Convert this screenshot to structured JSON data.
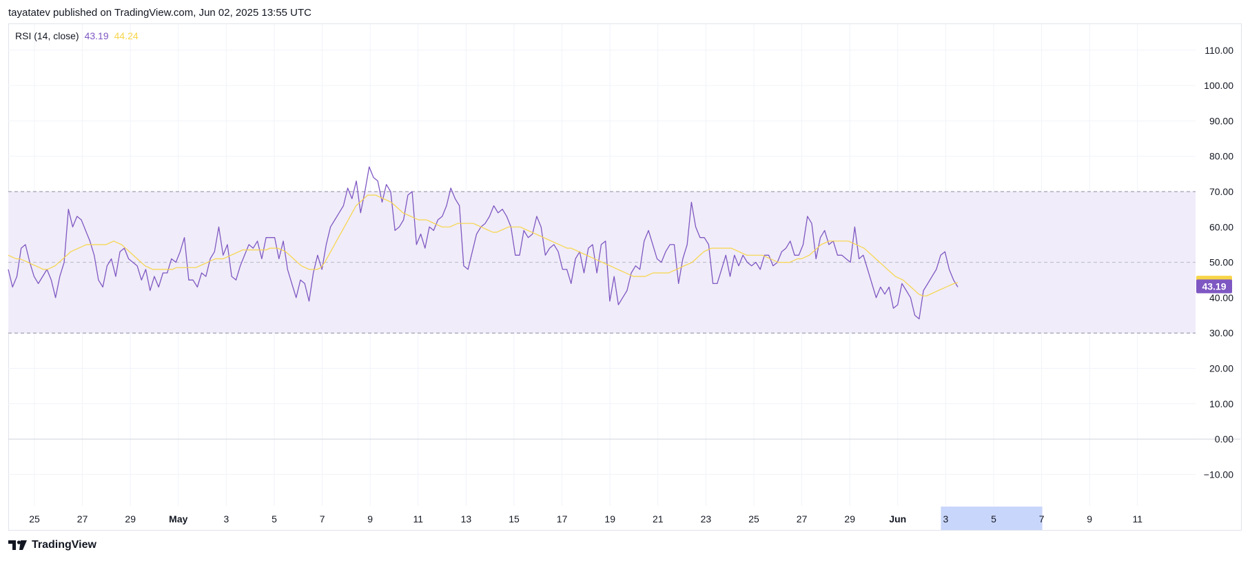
{
  "header": {
    "published": "tayatatev published on TradingView.com, Jun 02, 2025 13:55 UTC"
  },
  "legend": {
    "indicator": "RSI (14, close)",
    "rsi_value": "43.19",
    "ma_value": "44.24"
  },
  "footer": {
    "logo_text": "TradingView",
    "logo_icon": "tradingview-logo-icon"
  },
  "colors": {
    "rsi": "#7e57c2",
    "ma": "#f7d548",
    "band": "#f0ecf9",
    "band_line": "#8b8ba0",
    "grid": "#f0f3fa",
    "axis_text": "#131722",
    "selection": "#c9d6fb"
  },
  "chart_data": {
    "type": "line",
    "x_tick_labels": [
      "25",
      "27",
      "29",
      "May",
      "3",
      "5",
      "7",
      "9",
      "11",
      "13",
      "15",
      "17",
      "19",
      "21",
      "23",
      "25",
      "27",
      "29",
      "Jun",
      "3",
      "5",
      "7",
      "9",
      "11"
    ],
    "x_ticks_bold": [
      "May",
      "Jun"
    ],
    "highlighted_x_range": [
      "3",
      "7"
    ],
    "y_ticks": [
      -10,
      0,
      10,
      20,
      30,
      40,
      50,
      60,
      70,
      80,
      90,
      100,
      110
    ],
    "y_tick_labels": [
      "−10.00",
      "0.00",
      "10.00",
      "20.00",
      "30.00",
      "40.00",
      "50.00",
      "60.00",
      "70.00",
      "80.00",
      "90.00",
      "100.00",
      "110.00"
    ],
    "ylim": [
      -20,
      114
    ],
    "bands": {
      "upper": 70,
      "middle": 50,
      "lower": 30
    },
    "last_value_labels": {
      "rsi": "43.19",
      "ma": "44.24"
    },
    "series": [
      {
        "name": "RSI (14, close)",
        "values": [
          48,
          43,
          46,
          54,
          55,
          50,
          46,
          44,
          46,
          48,
          45,
          40,
          46,
          50,
          65,
          60,
          63,
          62,
          59,
          56,
          52,
          45,
          43,
          49,
          51,
          46,
          53,
          54,
          51,
          50,
          49,
          45,
          48,
          42,
          46,
          43,
          47,
          47,
          51,
          50,
          53,
          57,
          45,
          45,
          43,
          47,
          46,
          51,
          53,
          60,
          52,
          55,
          46,
          45,
          49,
          52,
          55,
          54,
          56,
          51,
          57,
          57,
          57,
          51,
          56,
          48,
          44,
          40,
          45,
          44,
          39,
          47,
          52,
          48,
          55,
          60,
          62,
          64,
          66,
          71,
          68,
          73,
          64,
          70,
          77,
          74,
          73,
          67,
          72,
          70,
          59,
          60,
          62,
          69,
          70,
          55,
          58,
          54,
          60,
          59,
          62,
          63,
          66,
          71,
          68,
          66,
          49,
          48,
          53,
          58,
          60,
          61,
          63,
          66,
          64,
          65,
          63,
          60,
          52,
          52,
          59,
          57,
          58,
          63,
          60,
          52,
          54,
          55,
          53,
          48,
          48,
          44,
          51,
          53,
          47,
          54,
          55,
          47,
          55,
          56,
          39,
          46,
          38,
          40,
          42,
          47,
          49,
          48,
          56,
          59,
          55,
          51,
          50,
          53,
          55,
          55,
          44,
          51,
          55,
          67,
          60,
          57,
          57,
          55,
          44,
          44,
          48,
          52,
          46,
          52,
          49,
          52,
          50,
          49,
          50,
          48,
          52,
          52,
          49,
          50,
          53,
          54,
          56,
          52,
          52,
          55,
          63,
          61,
          51,
          57,
          59,
          55,
          56,
          52,
          52,
          51,
          50,
          60,
          51,
          52,
          48,
          44,
          40,
          43,
          41,
          43,
          37,
          38,
          44,
          42,
          40,
          35,
          34,
          42,
          44,
          46,
          48,
          52,
          53,
          48,
          45,
          43
        ],
        "last": 43.19
      },
      {
        "name": "RSI-based MA",
        "values": [
          52,
          51.5,
          51,
          51,
          50.5,
          50,
          49.5,
          49,
          48.5,
          48,
          48,
          48.5,
          49,
          50,
          51,
          52,
          53,
          53.5,
          54,
          54.5,
          55,
          55,
          55,
          55,
          55,
          55,
          55.5,
          56,
          55.5,
          55,
          54,
          53,
          52,
          51,
          50,
          49,
          48.5,
          48,
          48,
          48,
          48,
          48,
          48,
          48.5,
          48.5,
          48.5,
          48.5,
          48.5,
          48.5,
          49,
          49.5,
          50,
          50.5,
          51,
          51,
          51,
          51.5,
          52,
          52.5,
          53,
          53.5,
          53.5,
          53.5,
          53.5,
          53.5,
          53.5,
          53.5,
          54,
          54,
          54,
          53.5,
          53,
          52,
          51,
          50,
          49,
          48.5,
          48,
          48,
          48,
          48.5,
          50,
          52,
          54,
          56,
          58,
          60,
          62,
          64,
          66,
          67,
          68,
          69,
          69,
          69,
          68.5,
          68,
          67.5,
          67,
          66,
          65,
          64,
          63.5,
          63,
          62.5,
          62,
          62,
          62,
          61.5,
          61,
          60.5,
          60,
          60,
          60,
          60.5,
          61,
          61,
          61,
          61,
          61,
          60.5,
          60,
          59.5,
          59,
          58.5,
          58.5,
          59,
          59.5,
          60,
          60,
          60,
          60,
          59.5,
          59,
          58.5,
          58,
          57.5,
          57,
          56.5,
          56,
          55.5,
          55,
          54.5,
          54,
          54,
          53.5,
          53,
          52.5,
          52,
          51.5,
          51,
          50.5,
          50,
          49.5,
          49,
          48.5,
          48,
          47.5,
          47,
          46.5,
          46,
          46,
          46,
          46,
          46.5,
          47,
          47,
          47,
          47,
          47,
          47.5,
          48,
          48.5,
          49,
          49.5,
          50,
          51,
          52,
          53,
          53.5,
          54,
          54,
          54,
          54,
          54,
          54,
          53.5,
          53,
          52.5,
          52,
          52,
          52,
          52,
          52,
          51.5,
          51,
          50.5,
          50,
          50,
          50,
          50,
          50.5,
          51,
          51,
          51.5,
          52,
          53,
          54,
          55,
          55.5,
          56,
          56,
          56,
          56,
          56,
          56,
          55.5,
          55,
          54.5,
          54,
          53,
          52,
          51,
          50,
          49,
          48,
          47,
          46,
          45.5,
          45,
          44,
          43,
          42,
          41,
          40.5,
          40.5,
          41,
          41.5,
          42,
          42.5,
          43,
          43.5,
          44,
          44.24
        ],
        "last": 44.24
      }
    ]
  }
}
